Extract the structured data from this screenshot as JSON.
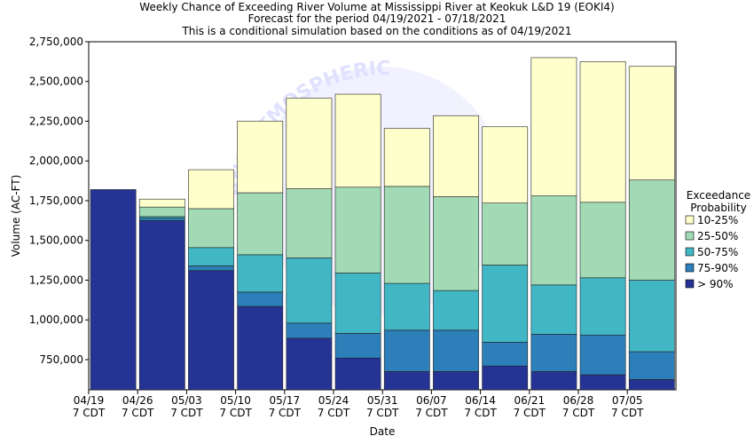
{
  "chart_data": {
    "type": "bar",
    "stacked": true,
    "title": [
      "Weekly Chance of Exceeding River Volume at Mississippi River at Keokuk L&D 19 (EOKI4)",
      "Forecast for the period 04/19/2021 - 07/18/2021",
      "This is a conditional simulation based on the conditions as of 04/19/2021"
    ],
    "xlabel": "Date",
    "ylabel": "Volume (AC-FT)",
    "ylim": [
      560000,
      2750000
    ],
    "yticks": [
      750000,
      1000000,
      1250000,
      1500000,
      1750000,
      2000000,
      2250000,
      2500000,
      2750000
    ],
    "ytick_labels": [
      "750,000",
      "1,000,000",
      "1,250,000",
      "1,500,000",
      "1,750,000",
      "2,000,000",
      "2,250,000",
      "2,500,000",
      "2,750,000"
    ],
    "xticks": [
      {
        "date": "04/19",
        "tz": "7 CDT"
      },
      {
        "date": "04/26",
        "tz": "7 CDT"
      },
      {
        "date": "05/03",
        "tz": "7 CDT"
      },
      {
        "date": "05/10",
        "tz": "7 CDT"
      },
      {
        "date": "05/17",
        "tz": "7 CDT"
      },
      {
        "date": "05/24",
        "tz": "7 CDT"
      },
      {
        "date": "05/31",
        "tz": "7 CDT"
      },
      {
        "date": "06/07",
        "tz": "7 CDT"
      },
      {
        "date": "06/14",
        "tz": "7 CDT"
      },
      {
        "date": "06/21",
        "tz": "7 CDT"
      },
      {
        "date": "06/28",
        "tz": "7 CDT"
      },
      {
        "date": "07/05",
        "tz": "7 CDT"
      }
    ],
    "weeks": [
      {
        "lo": 560000,
        "b90": 1820000,
        "b75": 1820000,
        "b50": 1820000,
        "b25": 1820000,
        "b10": 1820000
      },
      {
        "lo": 560000,
        "b90": 1625000,
        "b75": 1640000,
        "b50": 1650000,
        "b25": 1710000,
        "b10": 1760000
      },
      {
        "lo": 560000,
        "b90": 1310000,
        "b75": 1340000,
        "b50": 1455000,
        "b25": 1700000,
        "b10": 1945000
      },
      {
        "lo": 560000,
        "b90": 1085000,
        "b75": 1175000,
        "b50": 1410000,
        "b25": 1800000,
        "b10": 2250000
      },
      {
        "lo": 560000,
        "b90": 885000,
        "b75": 980000,
        "b50": 1390000,
        "b25": 1825000,
        "b10": 2395000
      },
      {
        "lo": 560000,
        "b90": 760000,
        "b75": 915000,
        "b50": 1295000,
        "b25": 1835000,
        "b10": 2420000
      },
      {
        "lo": 560000,
        "b90": 675000,
        "b75": 935000,
        "b50": 1230000,
        "b25": 1840000,
        "b10": 2205000
      },
      {
        "lo": 560000,
        "b90": 675000,
        "b75": 935000,
        "b50": 1185000,
        "b25": 1775000,
        "b10": 2285000
      },
      {
        "lo": 560000,
        "b90": 710000,
        "b75": 860000,
        "b50": 1345000,
        "b25": 1735000,
        "b10": 2215000
      },
      {
        "lo": 560000,
        "b90": 675000,
        "b75": 910000,
        "b50": 1220000,
        "b25": 1780000,
        "b10": 2650000
      },
      {
        "lo": 560000,
        "b90": 655000,
        "b75": 905000,
        "b50": 1265000,
        "b25": 1740000,
        "b10": 2625000
      },
      {
        "lo": 560000,
        "b90": 625000,
        "b75": 800000,
        "b50": 1250000,
        "b25": 1880000,
        "b10": 2595000
      }
    ],
    "legend": {
      "title": [
        "Exceedance",
        "Probability"
      ],
      "placement": "right",
      "entries": [
        {
          "label": "10-25%",
          "color": "#ffffcc"
        },
        {
          "label": "25-50%",
          "color": "#a1dab4"
        },
        {
          "label": "50-75%",
          "color": "#41b6c4"
        },
        {
          "label": "75-90%",
          "color": "#2c7fb8"
        },
        {
          "label": "> 90%",
          "color": "#253494"
        }
      ]
    },
    "watermark": "NATIONAL OCEANIC AND ATMOSPHERIC ADMINISTRATION"
  }
}
